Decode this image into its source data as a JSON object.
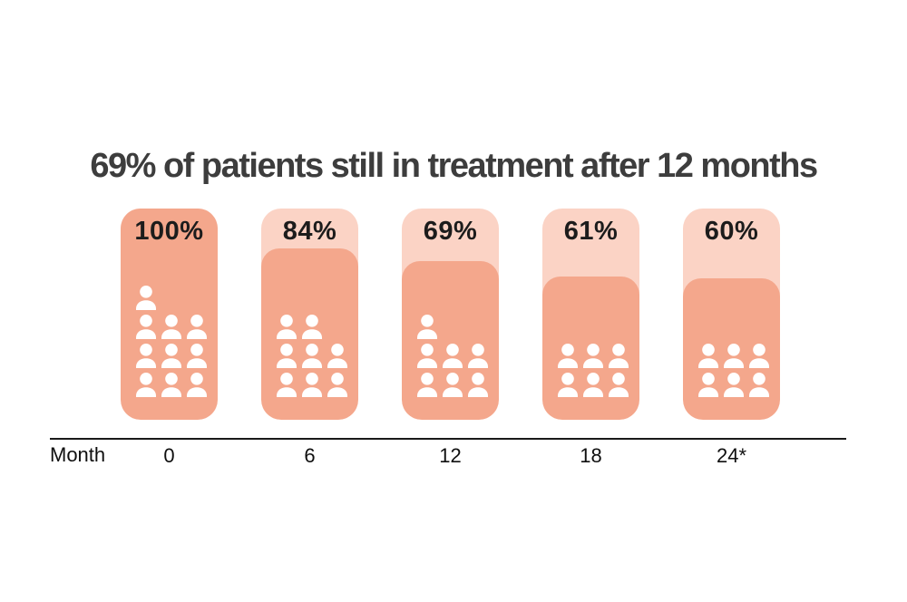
{
  "chart_data": {
    "type": "bar",
    "subtype": "pictogram-survival-bars",
    "title": "69% of patients still in treatment after 12 months",
    "xlabel": "Month",
    "categories": [
      "0",
      "6",
      "12",
      "18",
      "24*"
    ],
    "values": [
      100,
      84,
      69,
      61,
      60
    ],
    "value_labels": [
      "100%",
      "84%",
      "69%",
      "61%",
      "60%"
    ],
    "people_counts": [
      10,
      8,
      7,
      6,
      6
    ],
    "people_rows": [
      [
        1,
        3,
        3,
        3
      ],
      [
        2,
        3,
        3
      ],
      [
        1,
        3,
        3
      ],
      [
        3,
        3
      ],
      [
        3,
        3
      ]
    ],
    "fill_height_pct": [
      100,
      81,
      75,
      68,
      67
    ],
    "ylim": [
      0,
      100
    ],
    "gridlines": false,
    "legend": "none",
    "colors": {
      "bar_fill": "#f4a78c",
      "bar_track": "#fbd3c5",
      "people": "#ffffff",
      "title_text": "#3d3d3d",
      "value_text": "#1c1c1c",
      "axis_line": "#1a1a1a",
      "axis_text": "#0f0f0f",
      "background": "#ffffff"
    }
  }
}
